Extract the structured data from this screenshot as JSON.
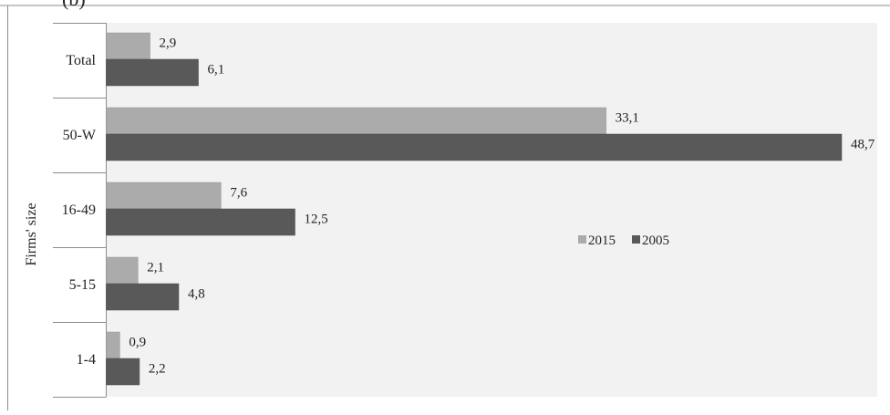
{
  "header_fragment": "(b)",
  "chart_data": {
    "type": "bar",
    "orientation": "horizontal",
    "ylabel": "Firms' size",
    "categories": [
      "Total",
      "50-W",
      "16-49",
      "5-15",
      "1-4"
    ],
    "series": [
      {
        "name": "2015",
        "values": [
          2.9,
          33.1,
          7.6,
          2.1,
          0.9
        ],
        "labels": [
          "2,9",
          "33,1",
          "7,6",
          "2,1",
          "0,9"
        ],
        "color": "#ababab"
      },
      {
        "name": "2005",
        "values": [
          6.1,
          48.7,
          12.5,
          4.8,
          2.2
        ],
        "labels": [
          "6,1",
          "48,7",
          "12,5",
          "4,8",
          "2,2"
        ],
        "color": "#595959"
      }
    ],
    "xlim": [
      0,
      48.7
    ],
    "grid": false,
    "legend_position": "center-right",
    "plot_background": "#f2f2f2"
  }
}
